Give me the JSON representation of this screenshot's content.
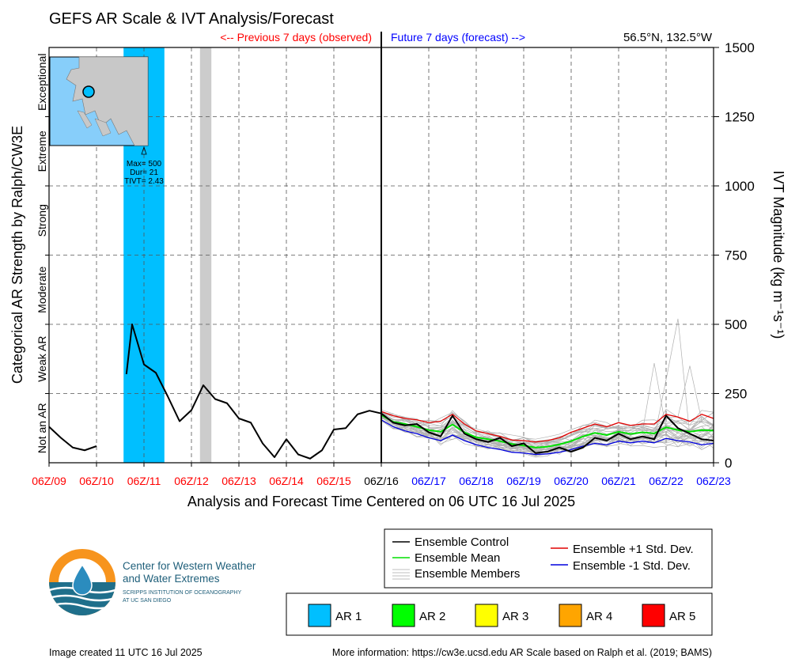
{
  "title": "GEFS AR Scale & IVT Analysis/Forecast",
  "location": "56.5°N, 132.5°W",
  "previous_label": "<-- Previous 7 days (observed)",
  "future_label": "Future 7 days (forecast) -->",
  "left_axis_title": "Categorical AR Strength by Ralph/CW3E",
  "right_axis_title": "IVT Magnitude (kg m⁻¹s⁻¹)",
  "x_axis_title": "Analysis and Forecast Time Centered on 06 UTC 16 Jul 2025",
  "categories": [
    "Not an AR",
    "Weak AR",
    "Moderate",
    "Strong",
    "Extreme",
    "Exceptional"
  ],
  "inset_annotation": [
    "Max= 500",
    "Dur= 21",
    "TIVT= 2.43"
  ],
  "legend_lines": [
    {
      "label": "Ensemble Control",
      "color": "#000000"
    },
    {
      "label": "Ensemble Mean",
      "color": "#00e000"
    },
    {
      "label": "Ensemble Members",
      "color": "#aaaaaa"
    },
    {
      "label": "Ensemble +1 Std. Dev.",
      "color": "#e00000"
    },
    {
      "label": "Ensemble -1 Std. Dev.",
      "color": "#0000dd"
    }
  ],
  "ar_legend": [
    {
      "label": "AR 1",
      "color": "#00bfff"
    },
    {
      "label": "AR 2",
      "color": "#00ff00"
    },
    {
      "label": "AR 3",
      "color": "#ffff00"
    },
    {
      "label": "AR 4",
      "color": "#ffa500"
    },
    {
      "label": "AR 5",
      "color": "#ff0000"
    }
  ],
  "logo": {
    "line1": "Center for Western Weather",
    "line2": "and Water Extremes",
    "line3": "SCRIPPS INSTITUTION OF OCEANOGRAPHY",
    "line4": "AT UC SAN DIEGO"
  },
  "footer_left": "Image created 11 UTC 16 Jul 2025",
  "footer_right": "More information: https://cw3e.ucsd.edu AR Scale based on Ralph et al. (2019; BAMS)",
  "chart_data": {
    "type": "line",
    "x_tick_labels": [
      "06Z/09",
      "06Z/10",
      "06Z/11",
      "06Z/12",
      "06Z/13",
      "06Z/14",
      "06Z/15",
      "06Z/16",
      "06Z/17",
      "06Z/18",
      "06Z/19",
      "06Z/20",
      "06Z/21",
      "06Z/22",
      "06Z/23"
    ],
    "x_tick_colors": [
      "#ff0000",
      "#ff0000",
      "#ff0000",
      "#ff0000",
      "#ff0000",
      "#ff0000",
      "#ff0000",
      "#000000",
      "#0000ff",
      "#0000ff",
      "#0000ff",
      "#0000ff",
      "#0000ff",
      "#0000ff",
      "#0000ff"
    ],
    "x_range_days": [
      0,
      14
    ],
    "y_range": [
      0,
      1500
    ],
    "y_ticks": [
      0,
      250,
      500,
      750,
      1000,
      1250,
      1500
    ],
    "ar_shading": [
      {
        "start": 1.57,
        "end": 2.43,
        "category": "AR 1"
      }
    ],
    "gray_shading": [
      {
        "start": 3.18,
        "end": 3.42
      }
    ],
    "observed_segments": [
      [
        [
          0,
          130
        ],
        [
          0.25,
          90
        ],
        [
          0.5,
          55
        ],
        [
          0.75,
          45
        ],
        [
          1.0,
          60
        ]
      ],
      [
        [
          1.63,
          320
        ],
        [
          1.75,
          500
        ],
        [
          2.0,
          355
        ],
        [
          2.25,
          325
        ],
        [
          2.5,
          240
        ],
        [
          2.75,
          150
        ],
        [
          3.0,
          190
        ],
        [
          3.25,
          280
        ],
        [
          3.5,
          230
        ],
        [
          3.75,
          215
        ],
        [
          4.0,
          160
        ],
        [
          4.25,
          145
        ],
        [
          4.5,
          70
        ],
        [
          4.75,
          20
        ],
        [
          5.0,
          85
        ],
        [
          5.25,
          30
        ],
        [
          5.5,
          15
        ],
        [
          5.75,
          45
        ],
        [
          6.0,
          120
        ],
        [
          6.25,
          125
        ],
        [
          6.5,
          175
        ],
        [
          6.75,
          188
        ],
        [
          7.0,
          178
        ]
      ]
    ],
    "forecast": {
      "x": [
        7.0,
        7.25,
        7.5,
        7.75,
        8.0,
        8.25,
        8.5,
        8.75,
        9.0,
        9.25,
        9.5,
        9.75,
        10.0,
        10.25,
        10.5,
        10.75,
        11.0,
        11.25,
        11.5,
        11.75,
        12.0,
        12.25,
        12.5,
        12.75,
        13.0,
        13.25,
        13.5,
        13.75,
        14.0
      ],
      "control": [
        178,
        145,
        135,
        140,
        110,
        95,
        170,
        105,
        85,
        75,
        90,
        60,
        70,
        35,
        40,
        55,
        40,
        55,
        90,
        80,
        105,
        85,
        95,
        85,
        170,
        125,
        105,
        85,
        80
      ],
      "mean": [
        172,
        148,
        140,
        130,
        118,
        112,
        138,
        110,
        92,
        85,
        78,
        68,
        62,
        55,
        58,
        66,
        78,
        95,
        108,
        100,
        112,
        104,
        110,
        106,
        128,
        118,
        112,
        118,
        116
      ],
      "plus_sd": [
        185,
        170,
        160,
        155,
        145,
        150,
        175,
        140,
        115,
        105,
        95,
        82,
        80,
        75,
        80,
        90,
        110,
        125,
        140,
        130,
        145,
        135,
        140,
        140,
        175,
        165,
        150,
        175,
        160
      ],
      "minus_sd": [
        155,
        130,
        115,
        105,
        90,
        80,
        100,
        80,
        65,
        55,
        48,
        38,
        35,
        30,
        32,
        38,
        48,
        60,
        70,
        65,
        78,
        72,
        78,
        72,
        88,
        80,
        75,
        65,
        70
      ],
      "members_count": 30,
      "max_member_peak": 520
    }
  }
}
